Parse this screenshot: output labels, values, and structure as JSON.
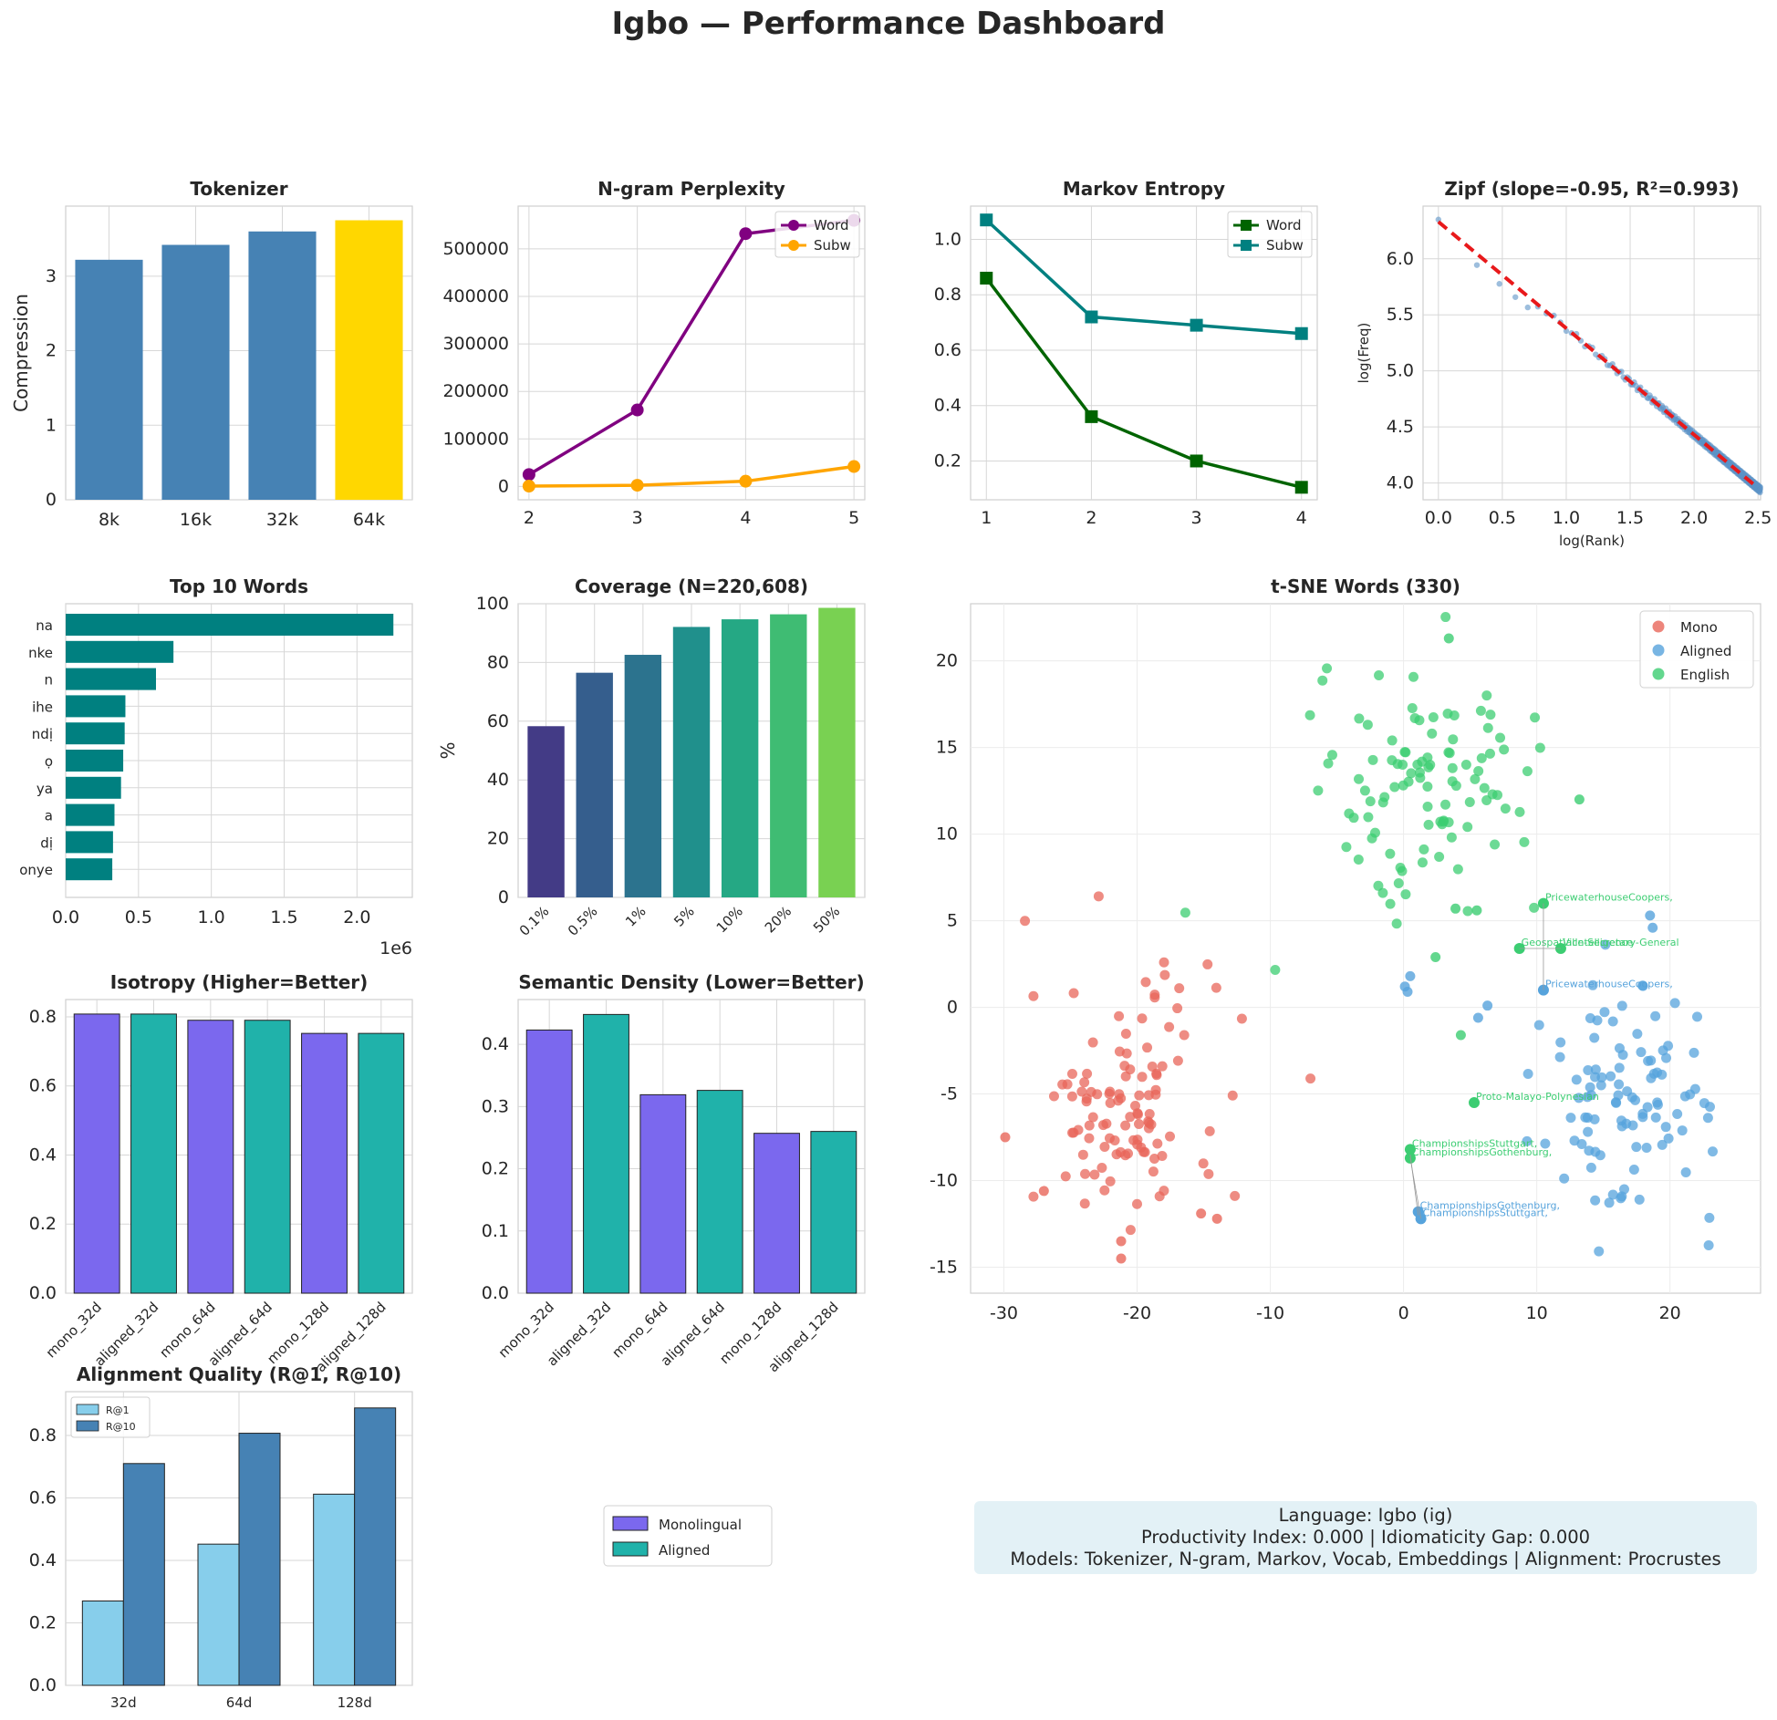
{
  "page_title": "Igbo — Performance Dashboard",
  "info": {
    "line1": "Language: Igbo (ig)",
    "line2": "Productivity Index: 0.000  |  Idiomaticity Gap: 0.000",
    "line3": "Models: Tokenizer, N-gram, Markov, Vocab, Embeddings  |  Alignment: Procrustes"
  },
  "colors": {
    "steel": "#4682b4",
    "gold": "#ffd700",
    "purple": "#800080",
    "orange": "#ffa500",
    "darkgreen": "#006400",
    "teal": "#008080",
    "mono": "#7b68ee",
    "aligned": "#20b2aa",
    "skyblue": "#87ceeb",
    "red": "#e41a1c"
  },
  "legend_global": [
    "Monolingual",
    "Aligned"
  ],
  "chart_data": [
    {
      "id": "tokenizer",
      "type": "bar",
      "title": "Tokenizer",
      "xlabel": "",
      "ylabel": "Compression",
      "categories": [
        "8k",
        "16k",
        "32k",
        "64k"
      ],
      "values": [
        3.22,
        3.42,
        3.6,
        3.75
      ],
      "highlight": "64k",
      "ylim": [
        0,
        3.94
      ],
      "yticks": [
        0,
        1,
        2,
        3
      ],
      "grid": true
    },
    {
      "id": "ngram",
      "type": "line",
      "title": "N-gram Perplexity",
      "xlabel": "",
      "ylabel": "",
      "x": [
        2,
        3,
        4,
        5
      ],
      "xlim": [
        1.9,
        5.1
      ],
      "ylim": [
        -28000,
        590000
      ],
      "yticks": [
        0,
        100000,
        200000,
        300000,
        400000,
        500000
      ],
      "series": [
        {
          "name": "Word",
          "values": [
            25000,
            161000,
            532000,
            560000
          ]
        },
        {
          "name": "Subw",
          "values": [
            800,
            2500,
            11000,
            42000
          ]
        }
      ],
      "legend": "top-right",
      "grid": true
    },
    {
      "id": "markov",
      "type": "line",
      "title": "Markov Entropy",
      "xlabel": "",
      "ylabel": "",
      "x": [
        1,
        2,
        3,
        4
      ],
      "xlim": [
        0.85,
        4.15
      ],
      "ylim": [
        0.06,
        1.12
      ],
      "yticks": [
        0.2,
        0.4,
        0.6,
        0.8,
        1.0
      ],
      "series": [
        {
          "name": "Word",
          "values": [
            0.86,
            0.36,
            0.2,
            0.105
          ]
        },
        {
          "name": "Subw",
          "values": [
            1.07,
            0.72,
            0.69,
            0.66
          ]
        }
      ],
      "legend": "top-right",
      "grid": true
    },
    {
      "id": "zipf",
      "type": "scatter",
      "title": "Zipf (slope=-0.95, R²=0.993)",
      "xlabel": "log(Rank)",
      "ylabel": "log(Freq)",
      "xlim": [
        -0.12,
        2.52
      ],
      "ylim": [
        3.85,
        6.47
      ],
      "xticks": [
        0.0,
        0.5,
        1.0,
        1.5,
        2.0,
        2.5
      ],
      "yticks": [
        4.0,
        4.5,
        5.0,
        5.5,
        6.0
      ],
      "fit": {
        "slope": -0.95,
        "intercept": 6.33
      },
      "grid": true
    },
    {
      "id": "topwords",
      "type": "bar",
      "title": "Top 10 Words",
      "orientation": "horizontal",
      "categories": [
        "na",
        "nke",
        "n",
        "ihe",
        "ndị",
        "ọ",
        "ya",
        "a",
        "dị",
        "onye"
      ],
      "values": [
        2250000,
        740000,
        620000,
        410000,
        405000,
        395000,
        380000,
        335000,
        325000,
        320000
      ],
      "xlim": [
        0,
        2380000
      ],
      "xticks": [
        0,
        500000,
        1000000,
        1500000,
        2000000
      ],
      "xticklabels": [
        "0.0",
        "0.5",
        "1.0",
        "1.5",
        "2.0"
      ],
      "offset_label": "1e6",
      "grid": true
    },
    {
      "id": "coverage",
      "type": "bar",
      "title": "Coverage (N=220,608)",
      "ylabel": "%",
      "categories": [
        "0.1%",
        "0.5%",
        "1%",
        "5%",
        "10%",
        "20%",
        "50%"
      ],
      "values": [
        58.3,
        76.5,
        82.6,
        92.1,
        94.7,
        96.4,
        98.6
      ],
      "ylim": [
        0,
        100
      ],
      "yticks": [
        0,
        20,
        40,
        60,
        80,
        100
      ],
      "grid": true
    },
    {
      "id": "tsne",
      "type": "scatter",
      "title": "t-SNE Words (330)",
      "xlim": [
        -32.5,
        26.8
      ],
      "ylim": [
        -16.5,
        23.3
      ],
      "xticks": [
        -30,
        -20,
        -10,
        0,
        10,
        20
      ],
      "yticks": [
        -15,
        -10,
        -5,
        0,
        5,
        10,
        15,
        20
      ],
      "series": [
        {
          "name": "Mono",
          "color": "#e8665a"
        },
        {
          "name": "Aligned",
          "color": "#56a3dc"
        },
        {
          "name": "English",
          "color": "#3ccd72"
        }
      ],
      "annotations": [
        {
          "text": "PricewaterhouseCoopers,",
          "x": 10.5,
          "y": 6.0,
          "series": "English"
        },
        {
          "text": "GeospatialIntelligence",
          "x": 8.7,
          "y": 3.4,
          "series": "English"
        },
        {
          "text": "Vice-Secretary-General",
          "x": 11.8,
          "y": 3.4,
          "series": "English"
        },
        {
          "text": "PricewaterhouseCoopers,",
          "x": 10.5,
          "y": 1.0,
          "series": "Aligned"
        },
        {
          "text": "Proto-Malayo-Polynesian",
          "x": 5.3,
          "y": -5.5,
          "series": "English"
        },
        {
          "text": "ChampionshipsStuttgart,",
          "x": 0.5,
          "y": -8.2,
          "series": "English"
        },
        {
          "text": "ChampionshipsGothenburg,",
          "x": 0.5,
          "y": -8.7,
          "series": "English"
        },
        {
          "text": "ChampionshipsGothenburg,",
          "x": 1.1,
          "y": -11.8,
          "series": "Aligned"
        },
        {
          "text": "ChampionshipsStuttgart,",
          "x": 1.3,
          "y": -12.2,
          "series": "Aligned"
        }
      ],
      "legend": "top-right",
      "grid": true
    },
    {
      "id": "isotropy",
      "type": "bar",
      "title": "Isotropy (Higher=Better)",
      "categories": [
        "mono_32d",
        "aligned_32d",
        "mono_64d",
        "aligned_64d",
        "mono_128d",
        "aligned_128d"
      ],
      "values": [
        0.808,
        0.808,
        0.79,
        0.79,
        0.752,
        0.752
      ],
      "ylim": [
        0,
        0.85
      ],
      "yticks": [
        0.0,
        0.2,
        0.4,
        0.6,
        0.8
      ],
      "grid": true
    },
    {
      "id": "density",
      "type": "bar",
      "title": "Semantic Density (Lower=Better)",
      "categories": [
        "mono_32d",
        "aligned_32d",
        "mono_64d",
        "aligned_64d",
        "mono_128d",
        "aligned_128d"
      ],
      "values": [
        0.423,
        0.448,
        0.319,
        0.326,
        0.257,
        0.26
      ],
      "ylim": [
        0,
        0.472
      ],
      "yticks": [
        0.0,
        0.1,
        0.2,
        0.3,
        0.4
      ],
      "grid": true
    },
    {
      "id": "alignment",
      "type": "bar",
      "title": "Alignment Quality (R@1, R@10)",
      "categories": [
        "32d",
        "64d",
        "128d"
      ],
      "series": [
        {
          "name": "R@1",
          "values": [
            0.27,
            0.452,
            0.612
          ]
        },
        {
          "name": "R@10",
          "values": [
            0.71,
            0.807,
            0.888
          ]
        }
      ],
      "ylim": [
        0,
        0.94
      ],
      "yticks": [
        0.0,
        0.2,
        0.4,
        0.6,
        0.8
      ],
      "legend": "top-left",
      "grid": true
    }
  ]
}
